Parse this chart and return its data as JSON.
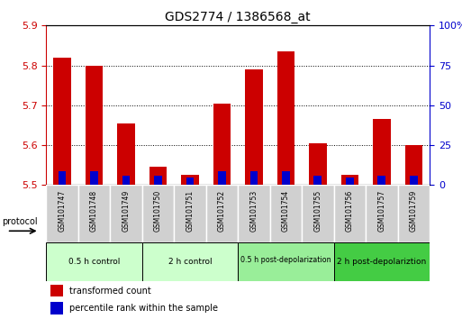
{
  "title": "GDS2774 / 1386568_at",
  "samples": [
    "GSM101747",
    "GSM101748",
    "GSM101749",
    "GSM101750",
    "GSM101751",
    "GSM101752",
    "GSM101753",
    "GSM101754",
    "GSM101755",
    "GSM101756",
    "GSM101757",
    "GSM101759"
  ],
  "red_values": [
    5.82,
    5.8,
    5.655,
    5.545,
    5.525,
    5.705,
    5.79,
    5.835,
    5.605,
    5.525,
    5.665,
    5.6
  ],
  "blue_values": [
    5.535,
    5.534,
    5.524,
    5.524,
    5.519,
    5.534,
    5.534,
    5.534,
    5.524,
    5.519,
    5.524,
    5.524
  ],
  "y_min": 5.5,
  "y_max": 5.9,
  "y_ticks_left": [
    5.5,
    5.6,
    5.7,
    5.8,
    5.9
  ],
  "y_ticks_right": [
    0,
    25,
    50,
    75,
    100
  ],
  "bar_width": 0.55,
  "blue_bar_width": 0.25,
  "red_color": "#cc0000",
  "blue_color": "#0000cc",
  "proto_groups": [
    {
      "label": "0.5 h control",
      "start": 0,
      "end": 3,
      "color": "#ccffcc"
    },
    {
      "label": "2 h control",
      "start": 3,
      "end": 6,
      "color": "#ccffcc"
    },
    {
      "label": "0.5 h post-depolarization",
      "start": 6,
      "end": 9,
      "color": "#99ee99"
    },
    {
      "label": "2 h post-depolariztion",
      "start": 9,
      "end": 12,
      "color": "#44cc44"
    }
  ],
  "sample_bg_color": "#d0d0d0",
  "sample_bg_edge_color": "#ffffff",
  "legend_red_label": "transformed count",
  "legend_blue_label": "percentile rank within the sample",
  "left_axis_color": "#cc0000",
  "right_axis_color": "#0000cc",
  "fig_width": 5.13,
  "fig_height": 3.54,
  "dpi": 100
}
